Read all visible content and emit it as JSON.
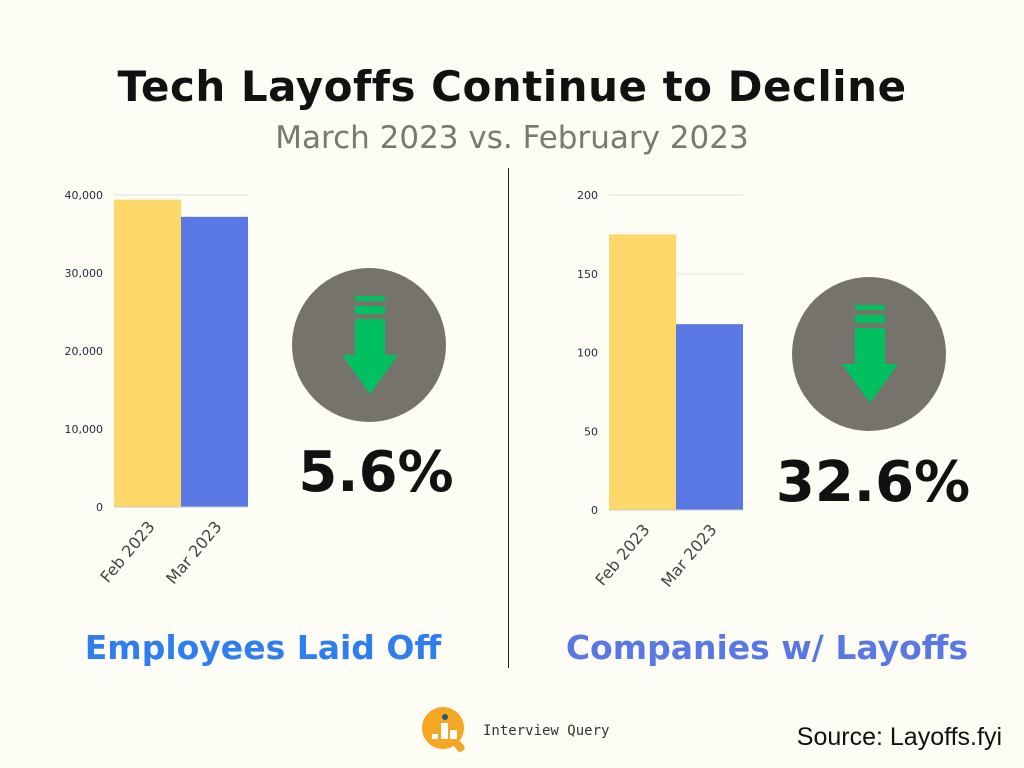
{
  "title": "Tech Layoffs Continue to Decline",
  "subtitle": "March 2023 vs. February 2023",
  "colors": {
    "feb": "#fdd868",
    "mar": "#5a78e4",
    "arrow": "#00c060",
    "circle": "#75736b",
    "caption_left": "#2f7ef0",
    "caption_right": "#5a78e4"
  },
  "chart_data": [
    {
      "type": "bar",
      "categories": [
        "Feb 2023",
        "Mar 2023"
      ],
      "values": [
        39400,
        37200
      ],
      "ylim": [
        0,
        40000
      ],
      "yticks": [
        "0",
        "10,000",
        "20,000",
        "30,000",
        "40,000"
      ],
      "ytick_values": [
        0,
        10000,
        20000,
        30000,
        40000
      ],
      "grid": true,
      "change_label": "5.6%",
      "change_icon": "down-arrow-icon",
      "caption": "Employees Laid Off"
    },
    {
      "type": "bar",
      "categories": [
        "Feb 2023",
        "Mar 2023"
      ],
      "values": [
        175,
        118
      ],
      "ylim": [
        0,
        200
      ],
      "yticks": [
        "0",
        "50",
        "100",
        "150",
        "200"
      ],
      "ytick_values": [
        0,
        50,
        100,
        150,
        200
      ],
      "grid": true,
      "change_label": "32.6%",
      "change_icon": "down-arrow-icon",
      "caption": "Companies w/ Layoffs"
    }
  ],
  "footer": {
    "brand": "Interview Query",
    "source": "Source: Layoffs.fyi"
  }
}
